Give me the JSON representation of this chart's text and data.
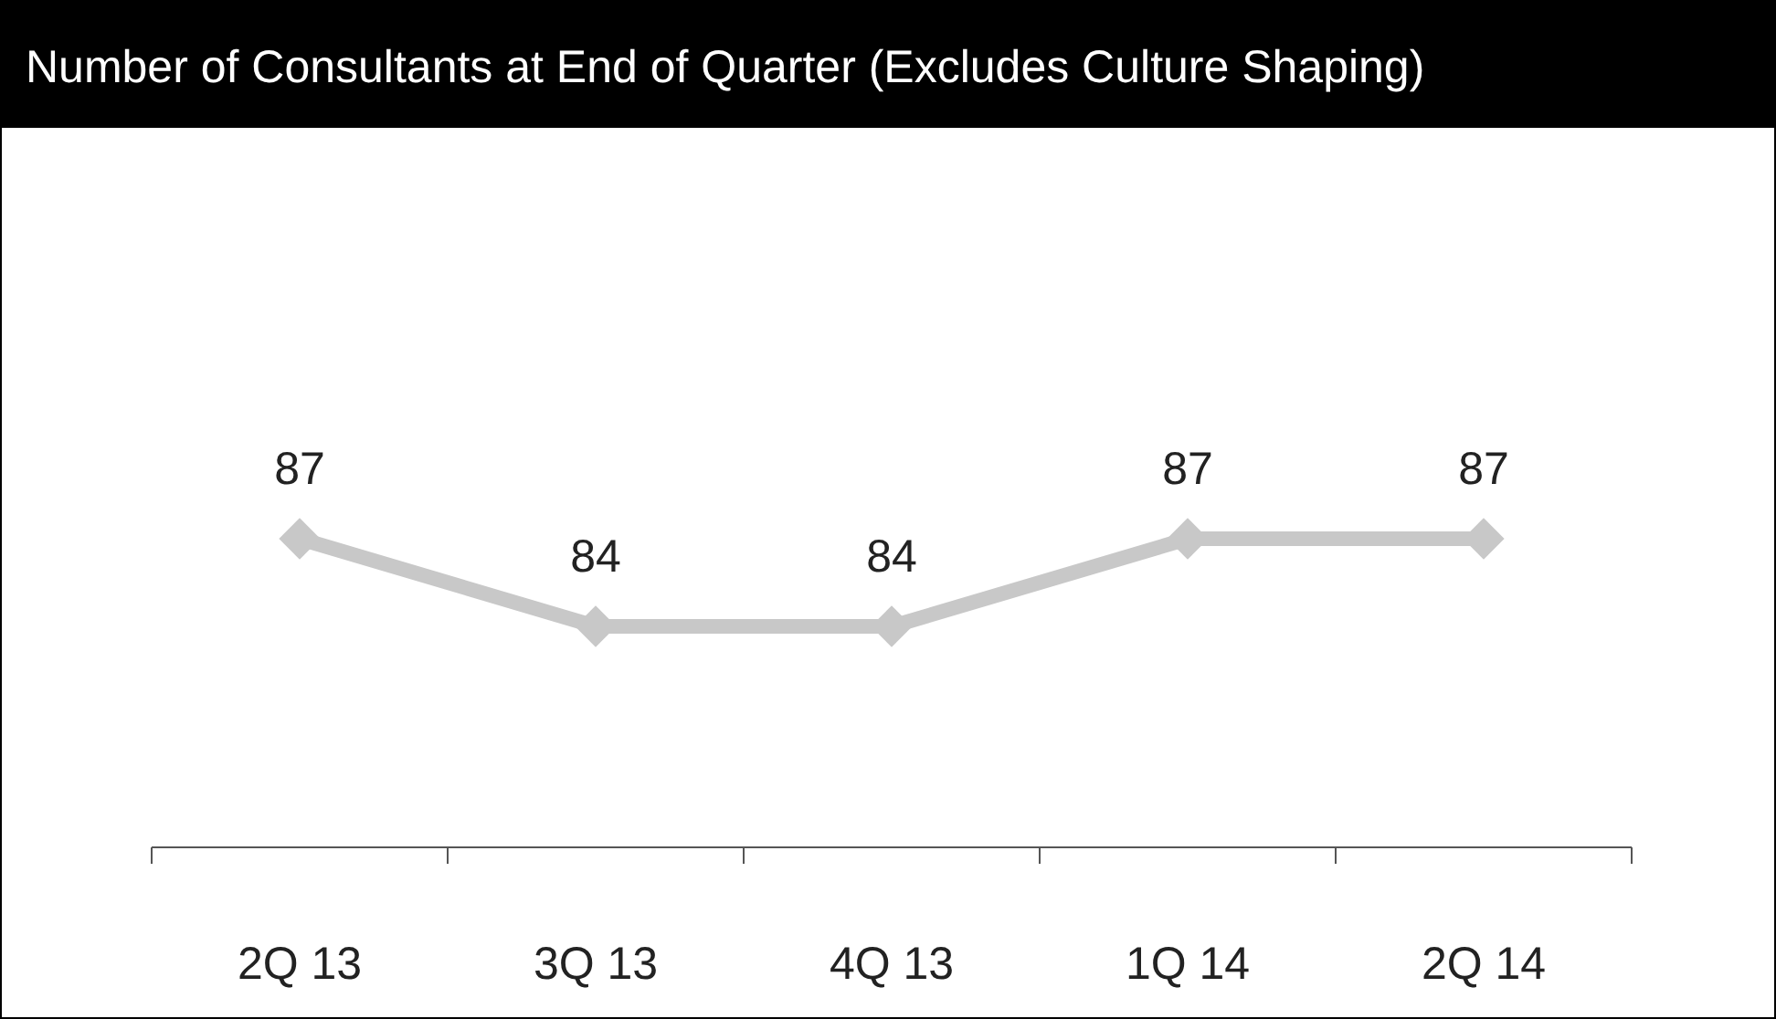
{
  "chart_data": {
    "type": "line",
    "title": "Number of Consultants at End of Quarter (Excludes Culture Shaping)",
    "categories": [
      "2Q 13",
      "3Q 13",
      "4Q 13",
      "1Q 14",
      "2Q 14"
    ],
    "values": [
      87,
      84,
      84,
      87,
      87
    ],
    "color": "#c8c8c8",
    "data_labels": true,
    "marker": "diamond",
    "line_style": "solid"
  }
}
